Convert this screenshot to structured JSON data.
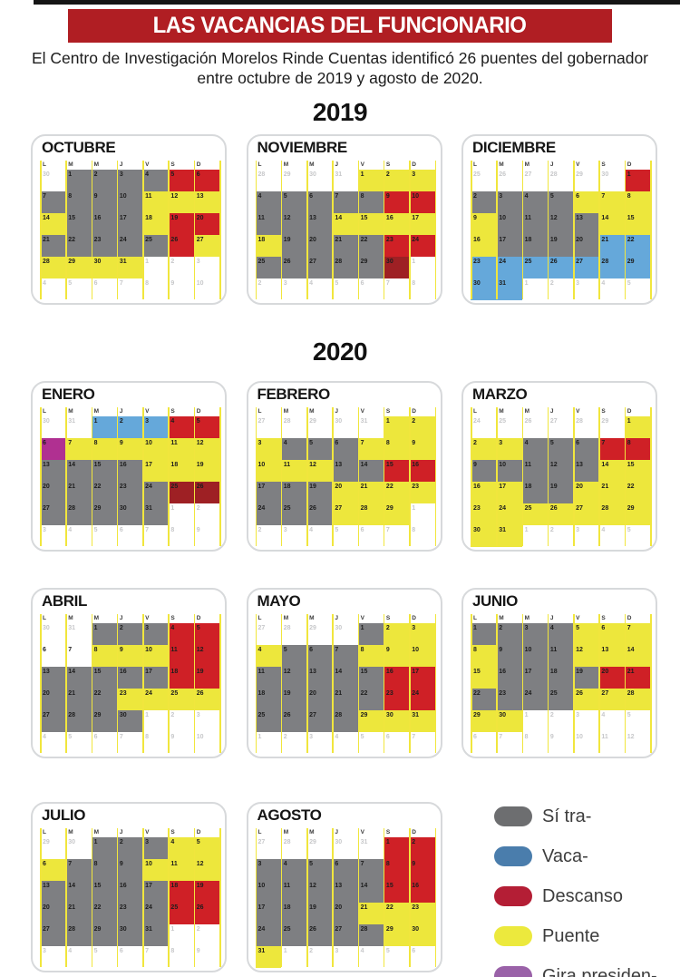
{
  "header": {
    "title": "LAS VACANCIAS DEL FUNCIONARIO",
    "subtitle": "El Centro de Investigación Morelos Rinde Cuentas identificó 26 puentes del gobernador entre octubre de 2019 y agosto de 2020."
  },
  "sections": {
    "year_2019": "2019",
    "year_2020": "2020"
  },
  "colors": {
    "banner": "#b01e23",
    "top_bar": "#151515",
    "current_day_number": "#1d1d1d",
    "other_month_number": "#c7c8ca",
    "calendar_border": "#d7d9db",
    "grid_line": "#f1e63d"
  },
  "day_types": {
    "w": {
      "name": "trabajo",
      "color": "#7e7f82"
    },
    "v": {
      "name": "vacaciones",
      "color": "#65a8da"
    },
    "r": {
      "name": "descanso",
      "color": "#cf2026"
    },
    "m": {
      "name": "descanso-oscuro",
      "color": "#9e2024"
    },
    "b": {
      "name": "puente",
      "color": "#ede73c"
    },
    "g": {
      "name": "gira",
      "color": "#b03091"
    },
    "x": {
      "name": "sin-color",
      "color": "transparent"
    },
    "p": {
      "name": "mes-anterior",
      "color": "transparent"
    },
    "n": {
      "name": "mes-siguiente",
      "color": "transparent"
    }
  },
  "legend": {
    "items": [
      {
        "label": "Sí tra-",
        "color": "#6d6e70"
      },
      {
        "label": "Vaca-",
        "color": "#4a7dac"
      },
      {
        "label": "Descanso",
        "color": "#b41e35"
      },
      {
        "label": "Puente",
        "color": "#ece93d"
      },
      {
        "label": "Gira presiden-",
        "color": "#9a62a8"
      }
    ]
  },
  "chart_data": {
    "type": "heatmap",
    "title": "LAS VACANCIAS DEL FUNCIONARIO",
    "subtitle": "El Centro de Investigación Morelos Rinde Cuentas identificó 26 puentes del gobernador entre octubre de 2019 y agosto de 2020.",
    "weekday_headers": [
      "L",
      "M",
      "M",
      "J",
      "V",
      "S",
      "D"
    ],
    "legend_position": "bottom-right",
    "months": [
      {
        "title": "OCTUBRE",
        "section": "2019",
        "cells": "30:p 1:w 2:w 3:w 4:w 5:r 6:r 7:w 8:w 9:w 10:w 11:b 12:b 13:b 14:b 15:w 16:w 17:w 18:b 19:r 20:r 21:w 22:w 23:w 24:w 25:w 26:r 27:b 28:b 29:b 30:b 31:b 1:n 2:n 3:n 4:n 5:n 6:n 7:n 8:n 9:n 10:n"
      },
      {
        "title": "NOVIEMBRE",
        "section": "2019",
        "cells": "28:p 29:p 30:p 31:p 1:b 2:b 3:b 4:w 5:w 6:w 7:w 8:w 9:r 10:r 11:w 12:w 13:w 14:b 15:b 16:b 17:b 18:b 19:w 20:w 21:w 22:w 23:r 24:r 25:w 26:w 27:w 28:w 29:w 30:m 1:n 2:n 3:n 4:n 5:n 6:n 7:n 8:n"
      },
      {
        "title": "DICIEMBRE",
        "section": "2019",
        "cells": "25:p 26:p 27:p 28:p 29:p 30:p 1:r 2:w 3:w 4:w 5:w 6:b 7:b 8:b 9:b 10:w 11:w 12:w 13:w 14:b 15:b 16:b 17:w 18:w 19:w 20:w 21:v 22:v 23:v 24:v 25:v 26:v 27:v 28:v 29:v 30:v 31:v 1:n 2:n 3:n 4:n 5:n"
      },
      {
        "title": "ENERO",
        "section": "2020",
        "cells": "30:p 31:p 1:v 2:v 3:v 4:r 5:r 6:g 7:b 8:b 9:b 10:b 11:b 12:b 13:w 14:w 15:w 16:w 17:b 18:b 19:b 20:w 21:w 22:w 23:w 24:w 25:m 26:m 27:w 28:w 29:w 30:w 31:w 1:n 2:n 3:n 4:n 5:n 6:n 7:n 8:n 9:n"
      },
      {
        "title": "FEBRERO",
        "section": "2020",
        "cells": "27:p 28:p 29:p 30:p 31:p 1:b 2:b 3:b 4:w 5:w 6:w 7:b 8:b 9:b 10:b 11:b 12:b 13:w 14:w 15:r 16:r 17:w 18:w 19:w 20:b 21:b 22:b 23:b 24:w 25:w 26:w 27:b 28:b 29:b 1:n 2:n 3:n 4:n 5:n 6:n 7:n 8:n"
      },
      {
        "title": "MARZO",
        "section": "2020",
        "cells": "24:p 25:p 26:p 27:p 28:p 29:p 1:b 2:b 3:b 4:w 5:w 6:w 7:r 8:r 9:w 10:w 11:w 12:w 13:w 14:b 15:b 16:b 17:b 18:w 19:w 20:b 21:b 22:b 23:b 24:b 25:b 26:b 27:b 28:b 29:b 30:b 31:b 1:n 2:n 3:n 4:n 5:n"
      },
      {
        "title": "ABRIL",
        "section": "2020",
        "cells": "30:p 31:p 1:w 2:w 3:w 4:r 5:r 6:x 7:x 8:b 9:b 10:b 11:r 12:r 13:w 14:w 15:w 16:w 17:w 18:r 19:r 20:w 21:w 22:w 23:b 24:b 25:b 26:b 27:w 28:w 29:w 30:w 1:n 2:n 3:n 4:n 5:n 6:n 7:n 8:n 9:n 10:n"
      },
      {
        "title": "MAYO",
        "section": "2020",
        "cells": "27:p 28:p 29:p 30:p 1:w 2:b 3:b 4:b 5:w 6:w 7:w 8:b 9:b 10:b 11:w 12:w 13:w 14:w 15:w 16:r 17:r 18:w 19:w 20:w 21:w 22:w 23:r 24:r 25:w 26:w 27:w 28:w 29:b 30:b 31:b 1:n 2:n 3:n 4:n 5:n 6:n 7:n"
      },
      {
        "title": "JUNIO",
        "section": "2020",
        "cells": "1:w 2:w 3:w 4:w 5:b 6:b 7:b 8:b 9:w 10:w 11:w 12:b 13:b 14:b 15:b 16:w 17:w 18:w 19:w 20:r 21:r 22:w 23:w 24:w 25:w 26:b 27:b 28:b 29:b 30:b 1:n 2:n 3:n 4:n 5:n 6:n 7:n 8:n 9:n 10:n 11:n 12:n"
      },
      {
        "title": "JULIO",
        "section": "2020",
        "cells": "29:p 30:p 1:w 2:w 3:w 4:b 5:b 6:b 7:w 8:w 9:w 10:b 11:b 12:b 13:w 14:w 15:w 16:w 17:w 18:r 19:r 20:w 21:w 22:w 23:w 24:w 25:r 26:r 27:w 28:w 29:w 30:w 31:w 1:n 2:n 3:n 4:n 5:n 6:n 7:n 8:n 9:n"
      },
      {
        "title": "AGOSTO",
        "section": "2020",
        "cells": "27:p 28:p 29:p 30:p 31:p 1:r 2:r 3:w 4:w 5:w 6:w 7:w 8:r 9:r 10:w 11:w 12:w 13:w 14:w 15:r 16:r 17:w 18:w 19:w 20:w 21:b 22:b 23:b 24:w 25:w 26:w 27:w 28:w 29:b 30:b 31:b 1:n 2:n 3:n 4:n 5:n 6:n"
      }
    ]
  }
}
